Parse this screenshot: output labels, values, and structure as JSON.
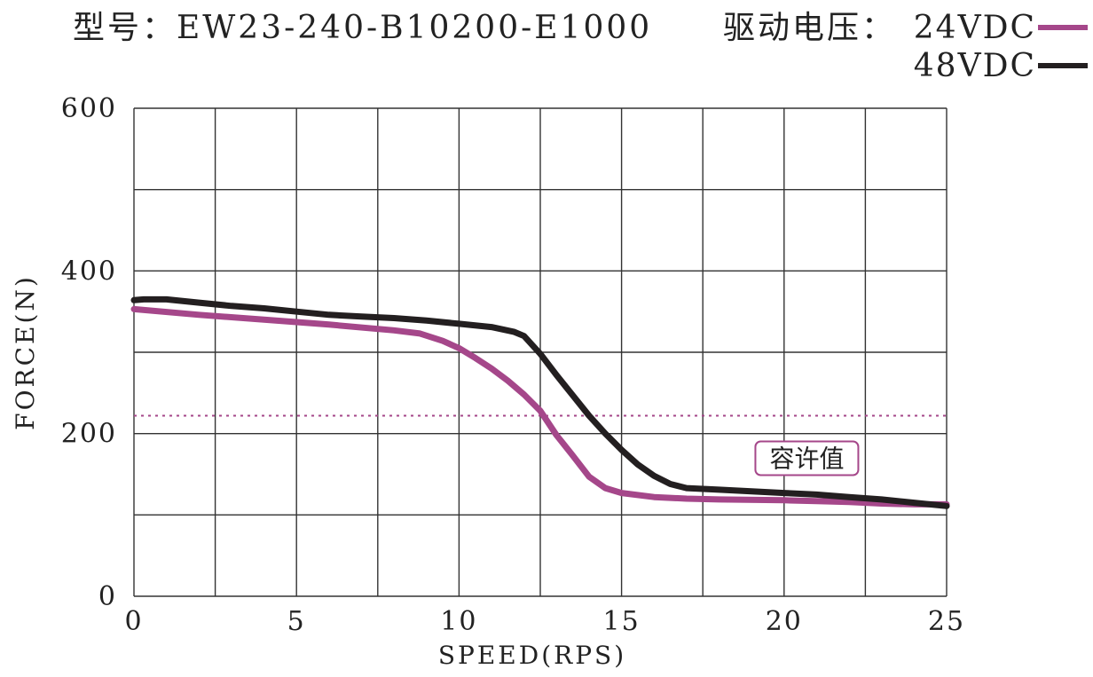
{
  "header": {
    "model_label": "型号：EW23-240-B10200-E1000",
    "voltage_label": "驱动电压："
  },
  "colors": {
    "series_24v": "#a5478a",
    "series_48v": "#231f20",
    "grid": "#333333",
    "threshold": "#a5478a"
  },
  "chart_data": {
    "type": "line",
    "xlabel": "SPEED(RPS)",
    "ylabel": "FORCE(N)",
    "xlim": [
      0,
      25
    ],
    "ylim": [
      0,
      600
    ],
    "grid": true,
    "legend_placement": "top-right",
    "x_ticks": [
      0,
      5,
      10,
      15,
      20,
      25
    ],
    "y_ticks": [
      0,
      200,
      400,
      600
    ],
    "x_grid_step": 2.5,
    "y_grid_step": 100,
    "series": [
      {
        "name": "24VDC",
        "color": "#a5478a",
        "points": [
          [
            0,
            353
          ],
          [
            2,
            346
          ],
          [
            4,
            340
          ],
          [
            6,
            334
          ],
          [
            8,
            327
          ],
          [
            8.8,
            323
          ],
          [
            9.5,
            314
          ],
          [
            10,
            305
          ],
          [
            10.5,
            293
          ],
          [
            11,
            280
          ],
          [
            11.5,
            265
          ],
          [
            12,
            248
          ],
          [
            12.5,
            228
          ],
          [
            13,
            198
          ],
          [
            13.5,
            173
          ],
          [
            14,
            147
          ],
          [
            14.5,
            133
          ],
          [
            15,
            127
          ],
          [
            16,
            122
          ],
          [
            17,
            120
          ],
          [
            18,
            119
          ],
          [
            20,
            118
          ],
          [
            21,
            117
          ],
          [
            22,
            116
          ],
          [
            23,
            114
          ],
          [
            24,
            113
          ],
          [
            25,
            113
          ]
        ]
      },
      {
        "name": "48VDC",
        "color": "#231f20",
        "points": [
          [
            0,
            364
          ],
          [
            0.3,
            365
          ],
          [
            1,
            365
          ],
          [
            2,
            361
          ],
          [
            3,
            357
          ],
          [
            4,
            354
          ],
          [
            5,
            350
          ],
          [
            6,
            346
          ],
          [
            7,
            344
          ],
          [
            8,
            342
          ],
          [
            9,
            339
          ],
          [
            10,
            335
          ],
          [
            11,
            331
          ],
          [
            11.7,
            325
          ],
          [
            12,
            320
          ],
          [
            12.5,
            298
          ],
          [
            13,
            272
          ],
          [
            13.5,
            247
          ],
          [
            14,
            222
          ],
          [
            14.5,
            200
          ],
          [
            15,
            180
          ],
          [
            15.5,
            162
          ],
          [
            16,
            148
          ],
          [
            16.5,
            138
          ],
          [
            17,
            133
          ],
          [
            18,
            131
          ],
          [
            19,
            129
          ],
          [
            20,
            127
          ],
          [
            21,
            125
          ],
          [
            22,
            122
          ],
          [
            23,
            119
          ],
          [
            24,
            115
          ],
          [
            25,
            111
          ]
        ]
      }
    ],
    "threshold": {
      "value": 222,
      "label": "容许值",
      "style": "dotted"
    }
  }
}
